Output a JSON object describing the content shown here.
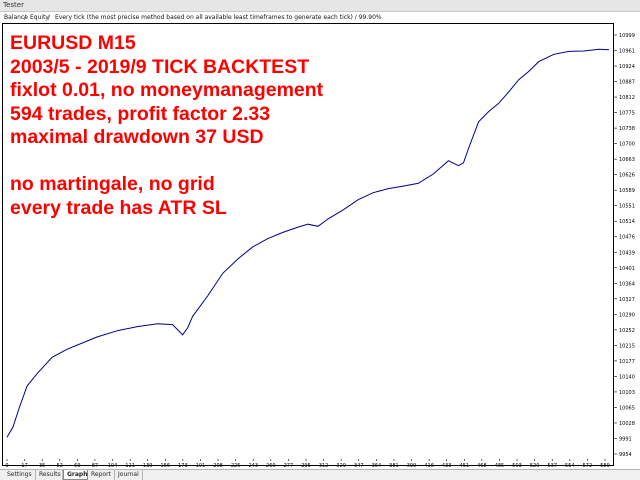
{
  "window": {
    "title": "Tester"
  },
  "infobar": {
    "balance_label": "Balance",
    "separator": "/",
    "equity_label": "Equity",
    "description": "Every tick (the most precise method based on all available least timeframes to generate each tick) / 99.90%"
  },
  "overlay": {
    "lines": [
      "EURUSD M15",
      "2003/5 - 2019/9 TICK BACKTEST",
      "fixlot 0.01, no moneymanagement",
      "594 trades, profit factor 2.33",
      "maximal drawdown 37 USD",
      "",
      "no martingale, no grid",
      "every trade has ATR SL"
    ],
    "color": "#ff0000"
  },
  "tabs": [
    {
      "label": "Settings",
      "active": false
    },
    {
      "label": "Results",
      "active": false
    },
    {
      "label": "Graph",
      "active": true
    },
    {
      "label": "Report",
      "active": false
    },
    {
      "label": "Journal",
      "active": false
    }
  ],
  "chart_data": {
    "type": "line",
    "series": [
      {
        "color": "#00008b",
        "x": [
          0,
          6,
          12,
          20,
          30,
          45,
          60,
          75,
          90,
          110,
          130,
          150,
          165,
          175,
          180,
          185,
          200,
          215,
          230,
          245,
          260,
          275,
          290,
          300,
          310,
          320,
          335,
          350,
          365,
          380,
          395,
          410,
          425,
          440,
          450,
          455,
          460,
          470,
          480,
          490,
          500,
          510,
          520,
          530,
          545,
          560,
          575,
          590,
          600
        ],
        "y": [
          9995,
          10020,
          10065,
          10120,
          10150,
          10190,
          10210,
          10225,
          10240,
          10255,
          10265,
          10272,
          10270,
          10245,
          10262,
          10290,
          10340,
          10395,
          10430,
          10460,
          10480,
          10495,
          10508,
          10515,
          10510,
          10528,
          10550,
          10575,
          10592,
          10602,
          10608,
          10615,
          10638,
          10670,
          10658,
          10665,
          10700,
          10765,
          10790,
          10810,
          10838,
          10868,
          10888,
          10912,
          10930,
          10937,
          10938,
          10942,
          10941
        ]
      }
    ],
    "y_ticks": [
      "10999",
      "10961",
      "10924",
      "10887",
      "10812",
      "10775",
      "10738",
      "10700",
      "10663",
      "10626",
      "10589",
      "10551",
      "10514",
      "10476",
      "10439",
      "10401",
      "10364",
      "10327",
      "10290",
      "10252",
      "10215",
      "10177",
      "10140",
      "10103",
      "10065",
      "10028",
      "9991",
      "9954"
    ],
    "x_ticks": [
      "0",
      "17",
      "35",
      "52",
      "69",
      "87",
      "104",
      "121",
      "139",
      "156",
      "173",
      "191",
      "208",
      "225",
      "243",
      "260",
      "277",
      "295",
      "312",
      "329",
      "347",
      "364",
      "381",
      "399",
      "416",
      "433",
      "451",
      "468",
      "485",
      "503",
      "520",
      "537",
      "554",
      "572",
      "589"
    ],
    "ylim": [
      9954,
      10999
    ],
    "xlim": [
      0,
      600
    ]
  }
}
